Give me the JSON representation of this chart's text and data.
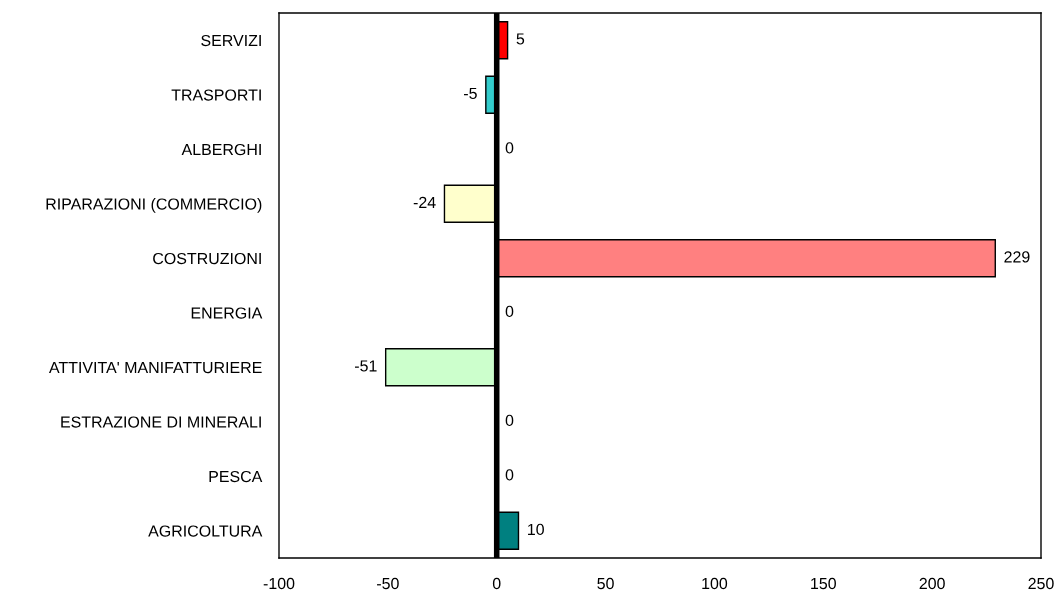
{
  "chart_data": {
    "type": "bar",
    "orientation": "horizontal",
    "categories": [
      "SERVIZI",
      "TRASPORTI",
      "ALBERGHI",
      "RIPARAZIONI (COMMERCIO)",
      "COSTRUZIONI",
      "ENERGIA",
      "ATTIVITA' MANIFATTURIERE",
      "ESTRAZIONE DI MINERALI",
      "PESCA",
      "AGRICOLTURA"
    ],
    "values": [
      5,
      -5,
      0,
      -24,
      229,
      0,
      -51,
      0,
      0,
      10
    ],
    "colors": [
      "#ff0000",
      "#33cccc",
      null,
      "#ffffcc",
      "#ff8080",
      null,
      "#ccffcc",
      null,
      null,
      "#008080"
    ],
    "xlim": [
      -100,
      250
    ],
    "xticks": [
      -100,
      -50,
      0,
      50,
      100,
      150,
      200,
      250
    ],
    "ref_lines": [
      {
        "axis": "x",
        "value": 0,
        "color": "#000000"
      }
    ],
    "data_labels": true,
    "grid": false,
    "legend": false
  }
}
